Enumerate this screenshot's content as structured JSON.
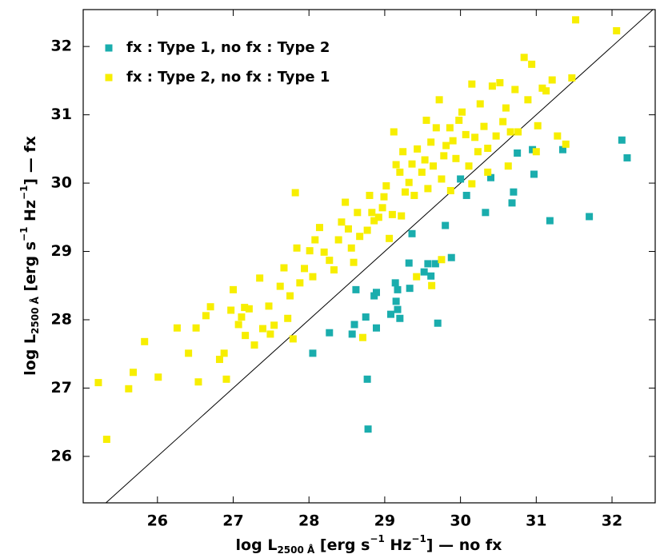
{
  "chart_data": {
    "type": "scatter",
    "x_label": [
      "log L",
      "2500 Å",
      " [erg s",
      "−1",
      " Hz",
      "−1",
      "] — no fx"
    ],
    "y_label": [
      "log L",
      "2500 Å",
      " [erg s",
      "−1",
      " Hz",
      "−1",
      "] — fx"
    ],
    "xlim": [
      25.02,
      32.57
    ],
    "ylim": [
      25.32,
      32.54
    ],
    "xticks": [
      26,
      27,
      28,
      29,
      30,
      31,
      32
    ],
    "yticks": [
      26,
      27,
      28,
      29,
      30,
      31,
      32
    ],
    "legend": "upper left",
    "series": [
      {
        "name": "fx : Type 1, no fx : Type 2",
        "color": "#1aadad",
        "x": [
          28.05,
          28.27,
          28.57,
          28.62,
          28.6,
          28.75,
          28.89,
          28.77,
          28.78,
          28.86,
          28.89,
          29.08,
          29.14,
          29.15,
          29.17,
          29.2,
          29.17,
          29.32,
          29.33,
          29.36,
          29.52,
          29.57,
          29.61,
          29.67,
          29.7,
          29.8,
          29.88,
          30.0,
          30.08,
          30.33,
          30.4,
          30.75,
          30.7,
          30.68,
          30.95,
          30.97,
          31.18,
          31.35,
          31.7,
          32.13,
          32.2
        ],
        "y": [
          27.51,
          27.81,
          27.79,
          28.44,
          27.93,
          28.04,
          27.88,
          27.13,
          26.4,
          28.35,
          28.4,
          28.08,
          28.54,
          28.27,
          28.15,
          28.02,
          28.44,
          28.83,
          28.46,
          29.26,
          28.7,
          28.82,
          28.64,
          28.82,
          27.95,
          29.38,
          28.91,
          30.06,
          29.82,
          29.57,
          30.08,
          30.44,
          29.87,
          29.71,
          30.49,
          30.13,
          29.45,
          30.49,
          29.51,
          30.63,
          30.37
        ]
      },
      {
        "name": "fx : Type 2, no fx : Type 1",
        "color": "#f7ee00",
        "x": [
          25.22,
          25.33,
          25.62,
          25.68,
          25.83,
          26.01,
          26.26,
          26.41,
          26.51,
          26.54,
          26.7,
          26.82,
          26.91,
          26.97,
          27.0,
          27.07,
          27.11,
          27.16,
          27.21,
          27.28,
          27.35,
          27.39,
          27.47,
          27.54,
          27.62,
          27.67,
          27.72,
          27.75,
          27.79,
          27.82,
          27.84,
          27.88,
          27.94,
          28.01,
          28.05,
          28.08,
          28.14,
          28.2,
          28.27,
          28.33,
          28.39,
          28.43,
          28.48,
          28.52,
          28.56,
          28.59,
          28.64,
          28.67,
          28.71,
          28.77,
          28.8,
          28.83,
          28.86,
          28.92,
          28.97,
          29.02,
          29.06,
          29.1,
          29.12,
          29.15,
          29.2,
          29.24,
          29.27,
          29.32,
          29.36,
          29.39,
          29.43,
          29.49,
          29.53,
          29.55,
          29.57,
          29.61,
          29.64,
          29.68,
          29.72,
          29.75,
          29.78,
          29.81,
          29.86,
          29.9,
          29.94,
          29.98,
          30.02,
          30.07,
          30.11,
          30.15,
          30.19,
          30.23,
          30.26,
          30.31,
          30.36,
          30.42,
          30.47,
          30.52,
          30.56,
          30.6,
          30.66,
          30.72,
          30.76,
          30.84,
          30.89,
          30.94,
          31.0,
          31.02,
          31.08,
          31.13,
          31.21,
          31.28,
          31.39,
          31.47,
          31.52,
          32.06,
          29.75,
          29.62,
          29.42,
          26.64,
          26.88,
          27.15,
          27.49,
          28.99,
          29.22,
          29.87,
          30.15,
          30.63,
          30.36
        ],
        "y": [
          27.08,
          26.25,
          26.99,
          27.23,
          27.68,
          27.16,
          27.88,
          27.51,
          27.88,
          27.09,
          28.19,
          27.42,
          27.13,
          28.14,
          28.44,
          27.93,
          28.04,
          27.77,
          28.16,
          27.63,
          28.61,
          27.87,
          28.2,
          27.92,
          28.49,
          28.76,
          28.02,
          28.35,
          27.72,
          29.86,
          29.05,
          28.54,
          28.75,
          29.01,
          28.63,
          29.17,
          29.35,
          28.99,
          28.87,
          28.73,
          29.17,
          29.43,
          29.72,
          29.33,
          29.05,
          28.84,
          29.57,
          29.22,
          27.74,
          29.31,
          29.82,
          29.57,
          29.45,
          29.5,
          29.64,
          29.96,
          29.19,
          29.54,
          30.75,
          30.27,
          30.16,
          30.46,
          29.87,
          30.01,
          30.28,
          29.82,
          30.5,
          30.16,
          30.34,
          30.92,
          29.92,
          30.6,
          30.25,
          30.81,
          31.22,
          30.06,
          30.4,
          30.55,
          30.81,
          30.62,
          30.36,
          30.92,
          31.04,
          30.71,
          30.25,
          31.45,
          30.67,
          30.46,
          31.16,
          30.83,
          30.51,
          31.42,
          30.69,
          31.47,
          30.9,
          31.1,
          30.75,
          31.37,
          30.75,
          31.84,
          31.22,
          31.74,
          30.46,
          30.84,
          31.39,
          31.35,
          31.51,
          30.69,
          30.57,
          31.54,
          32.39,
          32.23,
          28.88,
          28.5,
          28.63,
          28.06,
          27.51,
          28.18,
          27.79,
          29.8,
          29.52,
          29.89,
          29.99,
          30.25,
          30.16
        ]
      }
    ]
  }
}
